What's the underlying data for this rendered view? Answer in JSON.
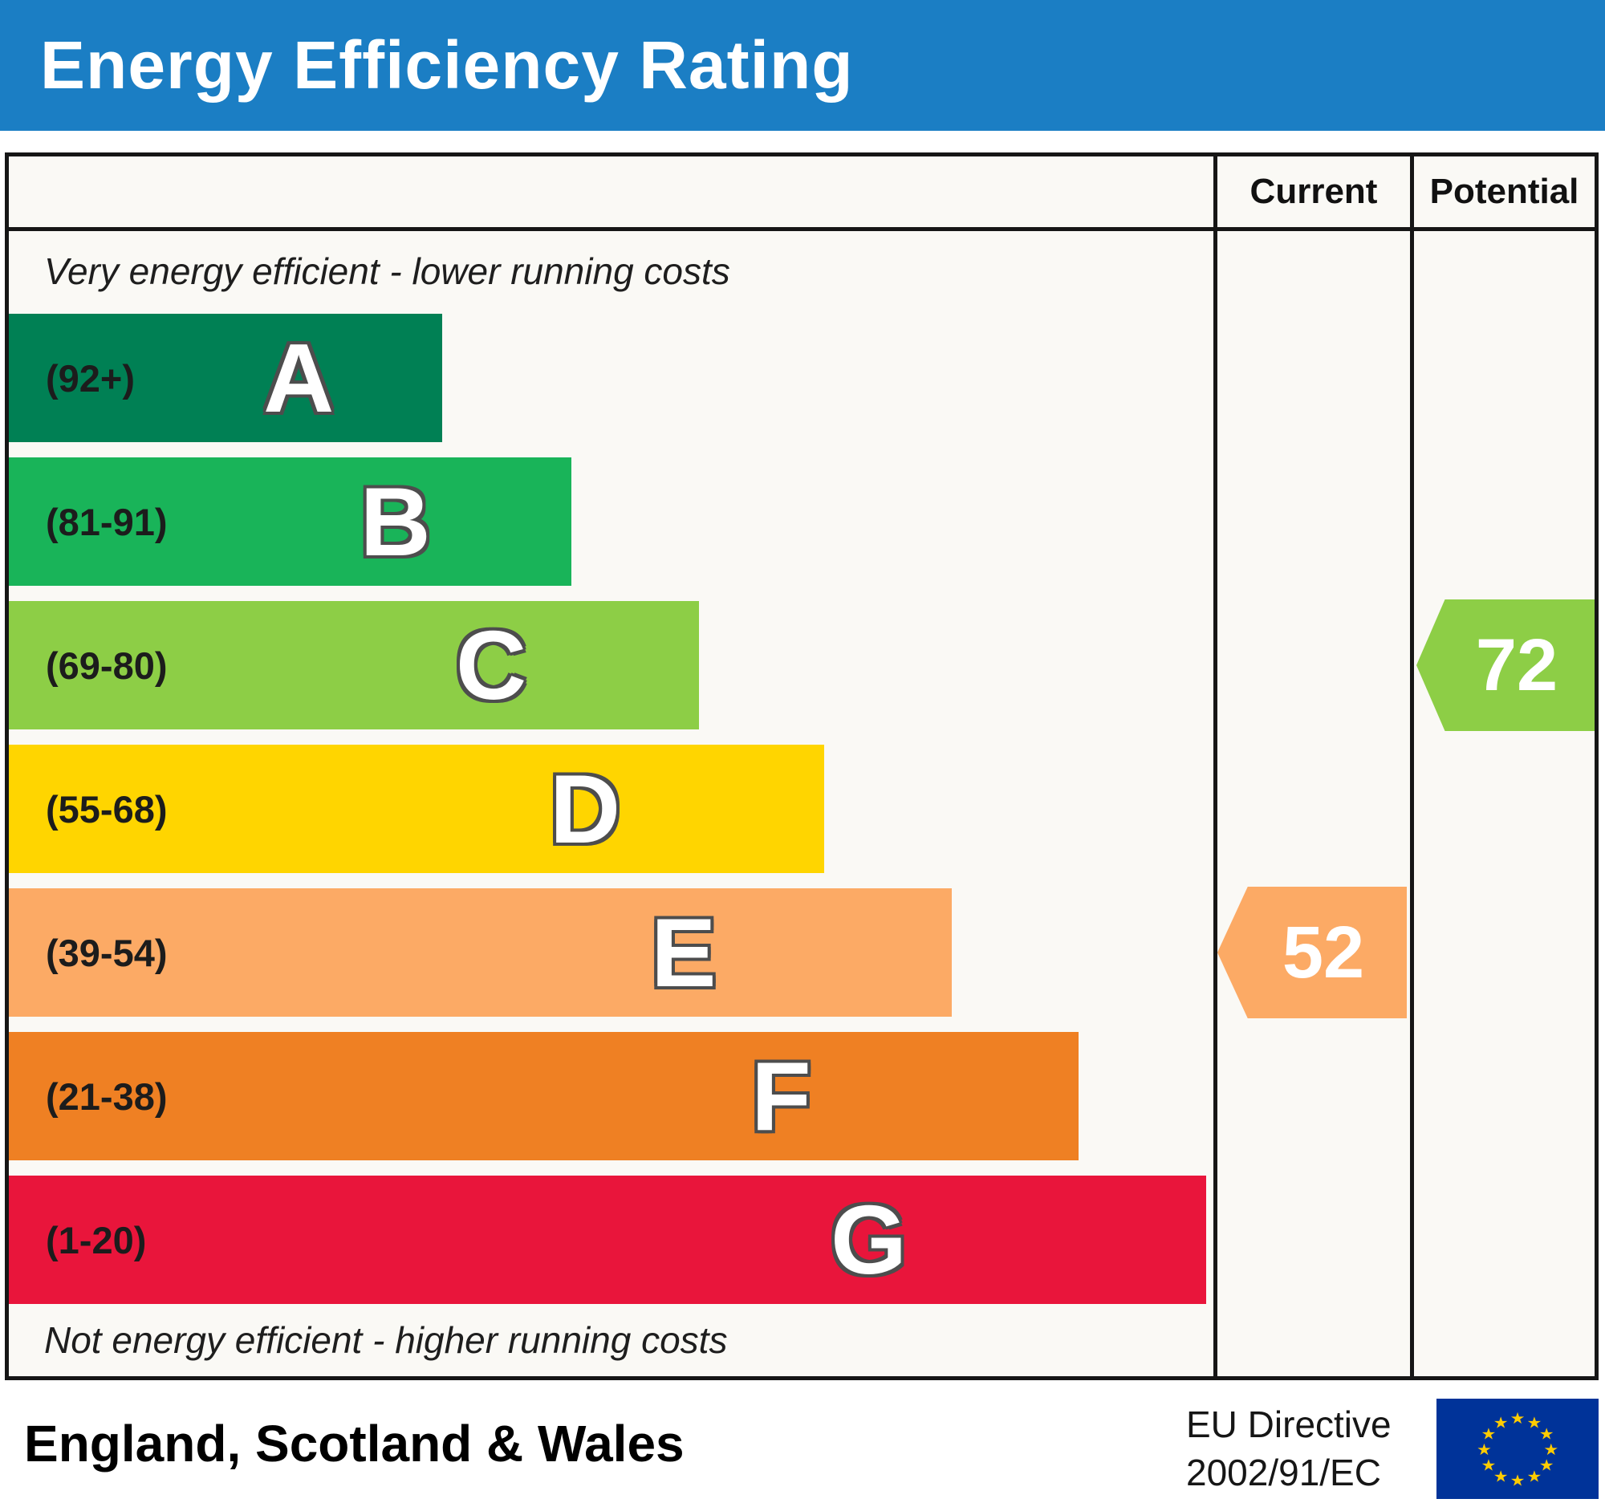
{
  "title": "Energy Efficiency Rating",
  "columns": {
    "current": "Current",
    "potential": "Potential"
  },
  "notes": {
    "top": "Very energy efficient - lower running costs",
    "bottom": "Not energy efficient - higher running costs"
  },
  "bands": [
    {
      "letter": "A",
      "range": "(92+)",
      "color": "#008054",
      "width_pct": 36.0
    },
    {
      "letter": "B",
      "range": "(81-91)",
      "color": "#19b459",
      "width_pct": 46.7
    },
    {
      "letter": "C",
      "range": "(69-80)",
      "color": "#8dce46",
      "width_pct": 57.3
    },
    {
      "letter": "D",
      "range": "(55-68)",
      "color": "#ffd500",
      "width_pct": 67.7
    },
    {
      "letter": "E",
      "range": "(39-54)",
      "color": "#fcaa65",
      "width_pct": 78.3
    },
    {
      "letter": "F",
      "range": "(21-38)",
      "color": "#ef8023",
      "width_pct": 88.8
    },
    {
      "letter": "G",
      "range": "(1-20)",
      "color": "#e9153b",
      "width_pct": 99.4
    }
  ],
  "current": {
    "value": "52",
    "band": "E",
    "color": "#fcaa65"
  },
  "potential": {
    "value": "72",
    "band": "C",
    "color": "#8dce46"
  },
  "footer": {
    "region": "England, Scotland & Wales",
    "directive_line1": "EU Directive",
    "directive_line2": "2002/91/EC"
  },
  "flag": {
    "background": "#003399",
    "star": "#ffcc00"
  },
  "chart_data": {
    "type": "bar",
    "title": "Energy Efficiency Rating",
    "categories": [
      "A",
      "B",
      "C",
      "D",
      "E",
      "F",
      "G"
    ],
    "band_ranges": [
      "92+",
      "81-91",
      "69-80",
      "55-68",
      "39-54",
      "21-38",
      "1-20"
    ],
    "band_colors": [
      "#008054",
      "#19b459",
      "#8dce46",
      "#ffd500",
      "#fcaa65",
      "#ef8023",
      "#e9153b"
    ],
    "scale": [
      1,
      100
    ],
    "series": [
      {
        "name": "Current",
        "value": 52,
        "band": "E"
      },
      {
        "name": "Potential",
        "value": 72,
        "band": "C"
      }
    ],
    "top_annotation": "Very energy efficient - lower running costs",
    "bottom_annotation": "Not energy efficient - higher running costs",
    "region": "England, Scotland & Wales",
    "directive": "EU Directive 2002/91/EC"
  }
}
